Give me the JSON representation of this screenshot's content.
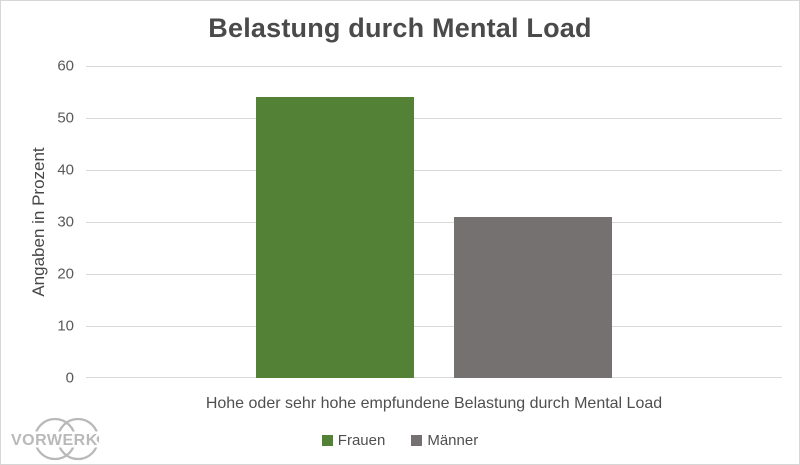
{
  "chart_data": {
    "type": "bar",
    "title": "Belastung durch Mental Load",
    "ylabel": "Angaben in Prozent",
    "xlabel": "",
    "categories": [
      "Hohe oder sehr hohe empfundene Belastung durch Mental Load"
    ],
    "series": [
      {
        "name": "Frauen",
        "values": [
          54
        ],
        "color": "#538135"
      },
      {
        "name": "Männer",
        "values": [
          31
        ],
        "color": "#767171"
      }
    ],
    "ylim": [
      0,
      60
    ],
    "ytick_step": 10,
    "yticks": [
      0,
      10,
      20,
      30,
      40,
      50,
      60
    ],
    "grid": true,
    "gridline_color": "#d9d9d9",
    "legend_position": "bottom"
  },
  "logo": {
    "text": "VORWERK",
    "color": "#b9b9b9"
  }
}
